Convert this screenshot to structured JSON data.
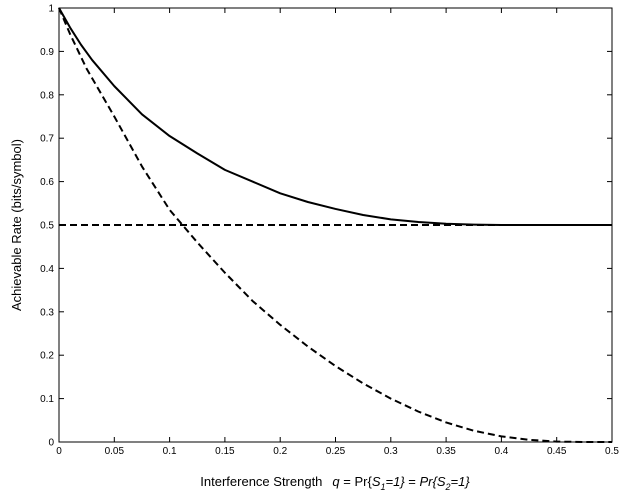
{
  "chart_data": {
    "type": "line",
    "xlabel": "Interference Strength",
    "xlabel_math": {
      "q": "q",
      "eq1": " = Pr{",
      "s1_main": "S",
      "s1_sub": "1",
      "s1_tail": "=1}",
      "eq2": " = ",
      "pr2": "Pr{",
      "s2_main": "S",
      "s2_sub": "2",
      "s2_tail": "=1}"
    },
    "ylabel": "Achievable Rate (bits/symbol)",
    "xlim": [
      0,
      0.5
    ],
    "ylim": [
      0,
      1
    ],
    "xticks": [
      "0",
      "0.05",
      "0.1",
      "0.15",
      "0.2",
      "0.25",
      "0.3",
      "0.35",
      "0.4",
      "0.45",
      "0.5"
    ],
    "yticks": [
      "0",
      "0.1",
      "0.2",
      "0.3",
      "0.4",
      "0.5",
      "0.6",
      "0.7",
      "0.8",
      "0.9",
      "1"
    ],
    "grid": false,
    "series": [
      {
        "style": "solid",
        "color": "#000000",
        "x": [
          0,
          0.01,
          0.02,
          0.03,
          0.05,
          0.075,
          0.1,
          0.125,
          0.15,
          0.175,
          0.2,
          0.225,
          0.25,
          0.275,
          0.3,
          0.325,
          0.35,
          0.375,
          0.4,
          0.45,
          0.5
        ],
        "y": [
          1.0,
          0.955,
          0.915,
          0.88,
          0.82,
          0.755,
          0.705,
          0.665,
          0.627,
          0.6,
          0.573,
          0.553,
          0.537,
          0.523,
          0.513,
          0.507,
          0.503,
          0.501,
          0.5,
          0.5,
          0.5
        ]
      },
      {
        "style": "dashed",
        "color": "#000000",
        "x": [
          0,
          0.5
        ],
        "y": [
          0.5,
          0.5
        ]
      },
      {
        "style": "dashed",
        "color": "#000000",
        "x": [
          0,
          0.01,
          0.025,
          0.05,
          0.075,
          0.1,
          0.125,
          0.15,
          0.175,
          0.2,
          0.225,
          0.25,
          0.275,
          0.3,
          0.325,
          0.35,
          0.375,
          0.4,
          0.425,
          0.45,
          0.475,
          0.5
        ],
        "y": [
          1.0,
          0.94,
          0.86,
          0.75,
          0.635,
          0.535,
          0.46,
          0.39,
          0.325,
          0.27,
          0.22,
          0.175,
          0.135,
          0.1,
          0.07,
          0.045,
          0.026,
          0.013,
          0.005,
          0.001,
          0.0,
          0.0
        ]
      }
    ]
  }
}
